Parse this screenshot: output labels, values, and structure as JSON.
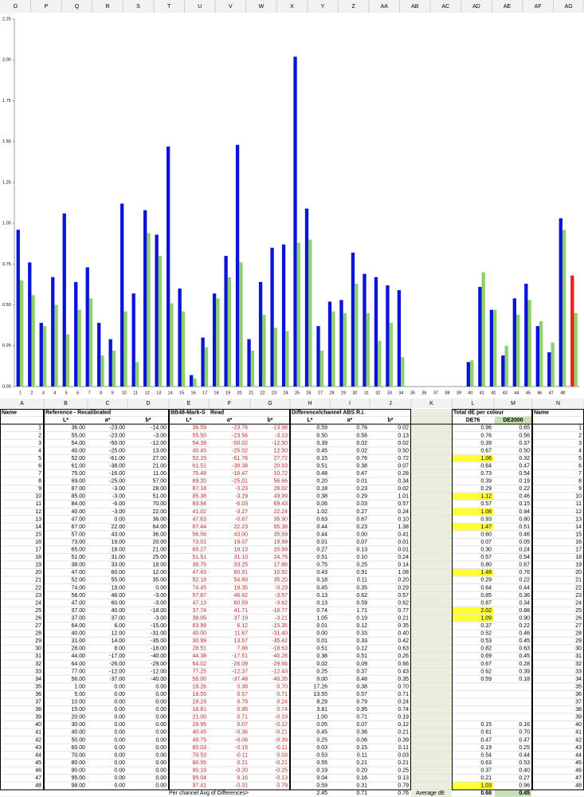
{
  "top_columns": [
    "O",
    "P",
    "Q",
    "R",
    "S",
    "T",
    "U",
    "V",
    "W",
    "X",
    "Y",
    "Z",
    "AA",
    "AB",
    "AC",
    "AD",
    "AE",
    "AF",
    "AG"
  ],
  "chart_data": {
    "type": "bar",
    "categories": [
      "1",
      "2",
      "3",
      "4",
      "5",
      "6",
      "7",
      "8",
      "9",
      "10",
      "11",
      "12",
      "13",
      "14",
      "15",
      "16",
      "17",
      "18",
      "19",
      "20",
      "21",
      "22",
      "23",
      "24",
      "25",
      "26",
      "27",
      "28",
      "29",
      "30",
      "31",
      "32",
      "33",
      "34",
      "35",
      "36",
      "37",
      "38",
      "39",
      "40",
      "41",
      "42",
      "43",
      "44",
      "45",
      "46",
      "47",
      "48",
      null
    ],
    "series": [
      {
        "color": "#0a14d8",
        "last_color": "#e8201a",
        "values": [
          0.96,
          0.76,
          0.39,
          0.67,
          1.06,
          0.64,
          0.73,
          0.39,
          0.29,
          1.12,
          0.57,
          1.08,
          0.93,
          1.47,
          0.6,
          0.07,
          0.3,
          0.57,
          0.8,
          1.48,
          0.29,
          0.64,
          0.85,
          0.87,
          2.02,
          1.09,
          0.37,
          0.52,
          0.53,
          0.82,
          0.69,
          0.67,
          0.62,
          0.59,
          null,
          null,
          null,
          null,
          null,
          0.15,
          0.61,
          0.47,
          0.19,
          0.54,
          0.63,
          0.37,
          0.21,
          1.03,
          0.68
        ]
      },
      {
        "color": "#8fd16a",
        "values": [
          0.65,
          0.56,
          0.37,
          0.5,
          0.32,
          0.47,
          0.54,
          0.19,
          0.22,
          0.46,
          0.15,
          0.94,
          0.8,
          0.51,
          0.46,
          0.05,
          0.24,
          0.54,
          0.67,
          0.76,
          0.22,
          0.44,
          0.36,
          0.34,
          0.88,
          0.9,
          0.22,
          0.46,
          0.45,
          0.63,
          0.45,
          0.28,
          0.39,
          0.18,
          null,
          null,
          null,
          null,
          null,
          0.16,
          0.7,
          0.47,
          0.25,
          0.44,
          0.53,
          0.4,
          0.27,
          0.96,
          0.45
        ]
      }
    ],
    "ylim": [
      0,
      2.25
    ],
    "yticks": [
      {
        "value": 0,
        "label": "0.00"
      },
      0.25,
      {
        "value": 0.5,
        "label": "0.50"
      },
      0.75,
      {
        "value": 1,
        "label": "1.00"
      },
      1.25,
      {
        "value": 1.5,
        "label": "1.50"
      },
      1.75,
      {
        "value": 2,
        "label": "2.00"
      },
      2.25
    ]
  },
  "columns": [
    "A",
    "B",
    "C",
    "D",
    "E",
    "F",
    "G",
    "H",
    "I",
    "J",
    "K",
    "L",
    "M",
    "N"
  ],
  "table": {
    "header1": [
      "Name",
      "Reference - Recalibrated",
      null,
      null,
      "BB48-Mark-S",
      "Read",
      null,
      "Difference/channel  ABS R.I.",
      null,
      null,
      null,
      "Total dE per colour",
      null,
      "Name"
    ],
    "header2": [
      null,
      "L*",
      "a*",
      "b*",
      "L*",
      "a*",
      "b*",
      "L*",
      "a*",
      "b*",
      null,
      "DE76",
      "DE2000",
      null
    ],
    "highlight_min": 1,
    "highlight_color": "#ffff33",
    "rows": [
      [
        "1",
        "36.00",
        "-23.00",
        "-14.00",
        "36.59",
        "-23.76",
        "-13.98",
        "0.59",
        "0.76",
        "0.02",
        null,
        "0.96",
        "0.65",
        "1"
      ],
      [
        "2",
        "55.00",
        "-23.00",
        "-3.00",
        "55.50",
        "-23.56",
        "-3.13",
        "0.50",
        "0.56",
        "0.13",
        null,
        "0.76",
        "0.56",
        "2"
      ],
      [
        "3",
        "54.00",
        "-50.00",
        "-12.00",
        "54.39",
        "-50.02",
        "-12.50",
        "0.39",
        "0.02",
        "0.02",
        null,
        "0.39",
        "0.37",
        "3"
      ],
      [
        "4",
        "40.00",
        "-25.00",
        "13.00",
        "40.45",
        "-25.02",
        "12.50",
        "0.45",
        "0.02",
        "0.50",
        null,
        "0.67",
        "0.50",
        "4"
      ],
      [
        "5",
        "52.00",
        "-61.00",
        "27.00",
        "52.15",
        "-61.76",
        "27.72",
        "0.15",
        "0.76",
        "0.72",
        null,
        "1.06",
        "0.32",
        "5"
      ],
      [
        "6",
        "61.00",
        "-38.00",
        "21.00",
        "61.51",
        "-38.38",
        "20.93",
        "0.51",
        "0.38",
        "0.07",
        null,
        "0.64",
        "0.47",
        "6"
      ],
      [
        "7",
        "75.00",
        "-16.00",
        "11.00",
        "75.48",
        "-16.47",
        "10.72",
        "0.48",
        "0.47",
        "0.28",
        null,
        "0.73",
        "0.54",
        "7"
      ],
      [
        "8",
        "69.00",
        "-25.00",
        "57.00",
        "69.20",
        "-25.01",
        "56.66",
        "0.20",
        "0.01",
        "0.34",
        null,
        "0.39",
        "0.19",
        "8"
      ],
      [
        "9",
        "87.00",
        "-3.00",
        "28.00",
        "87.18",
        "-3.23",
        "28.02",
        "0.18",
        "0.23",
        "0.02",
        null,
        "0.29",
        "0.22",
        "9"
      ],
      [
        "10",
        "85.00",
        "-3.00",
        "51.00",
        "85.38",
        "-3.29",
        "49.99",
        "0.38",
        "0.29",
        "1.01",
        null,
        "1.12",
        "0.46",
        "10"
      ],
      [
        "11",
        "84.00",
        "-6.00",
        "70.00",
        "83.94",
        "-6.03",
        "69.43",
        "0.06",
        "0.03",
        "0.57",
        null,
        "0.57",
        "0.15",
        "11"
      ],
      [
        "12",
        "40.00",
        "-3.00",
        "22.00",
        "41.02",
        "-3.27",
        "22.24",
        "1.02",
        "0.27",
        "0.24",
        null,
        "1.08",
        "0.94",
        "12"
      ],
      [
        "13",
        "47.00",
        "0.00",
        "36.00",
        "47.63",
        "-0.67",
        "35.90",
        "0.63",
        "0.67",
        "0.10",
        null,
        "0.93",
        "0.80",
        "13"
      ],
      [
        "14",
        "67.00",
        "22.00",
        "64.00",
        "67.44",
        "22.23",
        "65.38",
        "0.44",
        "0.23",
        "1.38",
        null,
        "1.47",
        "0.51",
        "14"
      ],
      [
        "15",
        "57.00",
        "43.00",
        "36.00",
        "56.56",
        "43.00",
        "35.59",
        "0.44",
        "0.00",
        "0.41",
        null,
        "0.60",
        "0.46",
        "15"
      ],
      [
        "16",
        "73.00",
        "19.00",
        "20.00",
        "73.01",
        "19.07",
        "19.99",
        "0.01",
        "0.07",
        "0.01",
        null,
        "0.07",
        "0.05",
        "16"
      ],
      [
        "17",
        "65.00",
        "18.00",
        "21.00",
        "65.27",
        "18.13",
        "20.99",
        "0.27",
        "0.13",
        "0.01",
        null,
        "0.30",
        "0.24",
        "17"
      ],
      [
        "18",
        "51.00",
        "31.00",
        "25.00",
        "51.51",
        "31.10",
        "24.76",
        "0.51",
        "0.10",
        "0.24",
        null,
        "0.57",
        "0.54",
        "18"
      ],
      [
        "19",
        "38.00",
        "33.00",
        "18.00",
        "38.75",
        "33.25",
        "17.86",
        "0.75",
        "0.25",
        "0.14",
        null,
        "0.80",
        "0.67",
        "19"
      ],
      [
        "20",
        "47.00",
        "60.00",
        "12.00",
        "47.43",
        "60.91",
        "10.92",
        "0.43",
        "0.91",
        "1.08",
        null,
        "1.48",
        "0.76",
        "20"
      ],
      [
        "21",
        "52.00",
        "55.00",
        "35.00",
        "52.18",
        "54.89",
        "35.20",
        "0.18",
        "0.11",
        "0.20",
        null,
        "0.29",
        "0.22",
        "21"
      ],
      [
        "22",
        "74.00",
        "19.00",
        "0.00",
        "74.45",
        "19.35",
        "-0.29",
        "0.45",
        "0.35",
        "0.29",
        null,
        "0.64",
        "0.44",
        "22"
      ],
      [
        "23",
        "58.00",
        "46.00",
        "-3.00",
        "57.87",
        "46.62",
        "-3.57",
        "0.13",
        "0.62",
        "0.57",
        null,
        "0.85",
        "0.36",
        "23"
      ],
      [
        "24",
        "47.00",
        "60.00",
        "-3.00",
        "47.13",
        "60.59",
        "-3.62",
        "0.13",
        "0.59",
        "0.62",
        null,
        "0.87",
        "0.34",
        "24"
      ],
      [
        "25",
        "37.00",
        "40.00",
        "-18.00",
        "37.74",
        "41.71",
        "-18.77",
        "0.74",
        "1.71",
        "0.77",
        null,
        "2.02",
        "0.88",
        "25"
      ],
      [
        "26",
        "37.00",
        "37.00",
        "-3.00",
        "38.05",
        "37.19",
        "-3.21",
        "1.05",
        "0.19",
        "0.21",
        null,
        "1.09",
        "0.90",
        "26"
      ],
      [
        "27",
        "64.00",
        "6.00",
        "-15.00",
        "63.99",
        "6.12",
        "-15.35",
        "0.01",
        "0.12",
        "0.35",
        null,
        "0.37",
        "0.22",
        "27"
      ],
      [
        "28",
        "40.00",
        "12.00",
        "-31.00",
        "40.00",
        "11.67",
        "-31.40",
        "0.00",
        "0.33",
        "0.40",
        null,
        "0.52",
        "0.46",
        "28"
      ],
      [
        "29",
        "31.00",
        "14.00",
        "-35.00",
        "30.99",
        "13.67",
        "-35.42",
        "0.01",
        "0.33",
        "0.42",
        null,
        "0.53",
        "0.45",
        "29"
      ],
      [
        "30",
        "28.00",
        "8.00",
        "-18.00",
        "28.51",
        "7.88",
        "-18.63",
        "0.51",
        "0.12",
        "0.63",
        null,
        "0.82",
        "0.63",
        "30"
      ],
      [
        "31",
        "44.00",
        "-17.00",
        "-40.00",
        "44.38",
        "-17.51",
        "-40.26",
        "0.38",
        "0.51",
        "0.26",
        null,
        "0.69",
        "0.45",
        "31"
      ],
      [
        "32",
        "64.00",
        "-26.00",
        "-29.00",
        "64.02",
        "-26.09",
        "-29.66",
        "0.02",
        "0.09",
        "0.66",
        null,
        "0.67",
        "0.28",
        "32"
      ],
      [
        "33",
        "77.00",
        "-12.00",
        "-12.00",
        "77.25",
        "-12.37",
        "-12.43",
        "0.25",
        "0.37",
        "0.43",
        null,
        "0.62",
        "0.39",
        "33"
      ],
      [
        "34",
        "56.00",
        "-37.00",
        "-40.00",
        "56.00",
        "-37.48",
        "-40.35",
        "0.00",
        "0.48",
        "0.35",
        null,
        "0.59",
        "0.18",
        "34"
      ],
      [
        "35",
        "1.00",
        "0.00",
        "0.00",
        "18.26",
        "0.38",
        "0.70",
        "17.26",
        "0.38",
        "0.70",
        null,
        null,
        null,
        "35"
      ],
      [
        "36",
        "5.00",
        "0.00",
        "0.00",
        "18.55",
        "0.57",
        "0.71",
        "13.55",
        "0.57",
        "0.71",
        null,
        null,
        null,
        "36"
      ],
      [
        "37",
        "10.00",
        "0.00",
        "0.00",
        "18.29",
        "0.79",
        "0.24",
        "8.29",
        "0.79",
        "0.24",
        null,
        null,
        null,
        "37"
      ],
      [
        "38",
        "15.00",
        "0.00",
        "0.00",
        "18.81",
        "0.95",
        "0.74",
        "3.81",
        "0.95",
        "0.74",
        null,
        null,
        null,
        "38"
      ],
      [
        "39",
        "20.00",
        "0.00",
        "0.00",
        "21.00",
        "0.71",
        "-0.19",
        "1.00",
        "0.71",
        "0.19",
        null,
        null,
        null,
        "39"
      ],
      [
        "40",
        "30.00",
        "0.00",
        "0.00",
        "29.95",
        "0.07",
        "-0.12",
        "0.05",
        "0.07",
        "0.12",
        null,
        "0.15",
        "0.16",
        "40"
      ],
      [
        "41",
        "40.00",
        "0.00",
        "0.00",
        "40.45",
        "-0.36",
        "-0.21",
        "0.45",
        "0.36",
        "0.21",
        null,
        "0.61",
        "0.70",
        "41"
      ],
      [
        "42",
        "50.00",
        "0.00",
        "0.00",
        "49.75",
        "-0.06",
        "-0.39",
        "0.25",
        "0.06",
        "0.39",
        null,
        "0.47",
        "0.47",
        "42"
      ],
      [
        "43",
        "60.00",
        "0.00",
        "0.00",
        "60.03",
        "-0.15",
        "-0.11",
        "0.03",
        "0.15",
        "0.11",
        null,
        "0.19",
        "0.25",
        "43"
      ],
      [
        "44",
        "70.00",
        "0.00",
        "0.00",
        "70.53",
        "-0.11",
        "0.03",
        "0.53",
        "0.11",
        "0.03",
        null,
        "0.54",
        "0.44",
        "44"
      ],
      [
        "45",
        "80.00",
        "0.00",
        "0.00",
        "80.55",
        "0.21",
        "-0.21",
        "0.55",
        "0.21",
        "0.21",
        null,
        "0.63",
        "0.53",
        "45"
      ],
      [
        "46",
        "90.00",
        "0.00",
        "0.00",
        "90.19",
        "-0.20",
        "-0.25",
        "0.19",
        "0.20",
        "0.25",
        null,
        "0.37",
        "0.40",
        "46"
      ],
      [
        "47",
        "95.00",
        "0.00",
        "0.00",
        "95.04",
        "0.16",
        "-0.13",
        "0.04",
        "0.16",
        "0.13",
        null,
        "0.21",
        "0.27",
        "47"
      ],
      [
        "48",
        "98.00",
        "0.00",
        "0.00",
        "97.41",
        "-0.31",
        "0.79",
        "0.59",
        "0.31",
        "0.79",
        null,
        "1.03",
        "0.96",
        "48"
      ]
    ],
    "footer": [
      null,
      null,
      null,
      null,
      "Per channel Avg of Differences>",
      null,
      null,
      "2.45",
      "0.71",
      "0.76",
      "Average dE",
      "0.68",
      "0.45",
      null
    ]
  }
}
